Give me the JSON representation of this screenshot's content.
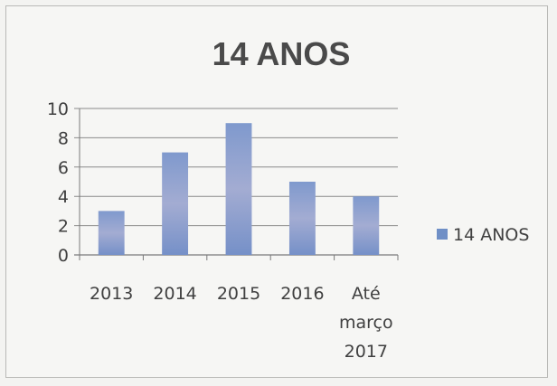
{
  "chart_data": {
    "type": "bar",
    "title": "14 ANOS",
    "categories": [
      "2013",
      "2014",
      "2015",
      "2016",
      "Até março 2017"
    ],
    "category_lines": [
      [
        "2013"
      ],
      [
        "2014"
      ],
      [
        "2015"
      ],
      [
        "2016"
      ],
      [
        "Até",
        "março",
        "2017"
      ]
    ],
    "series": [
      {
        "name": "14 ANOS",
        "values": [
          3,
          7,
          9,
          5,
          4
        ]
      }
    ],
    "ylim": [
      0,
      10
    ],
    "yticks": [
      "0",
      "2",
      "4",
      "6",
      "8",
      "10"
    ],
    "grid": true,
    "legend_position": "right",
    "colors": {
      "bar": "#6f8fc6",
      "bar_highlight": "#a6b2d4",
      "grid": "#8a8a8a",
      "axis": "#7a7a7a"
    }
  }
}
